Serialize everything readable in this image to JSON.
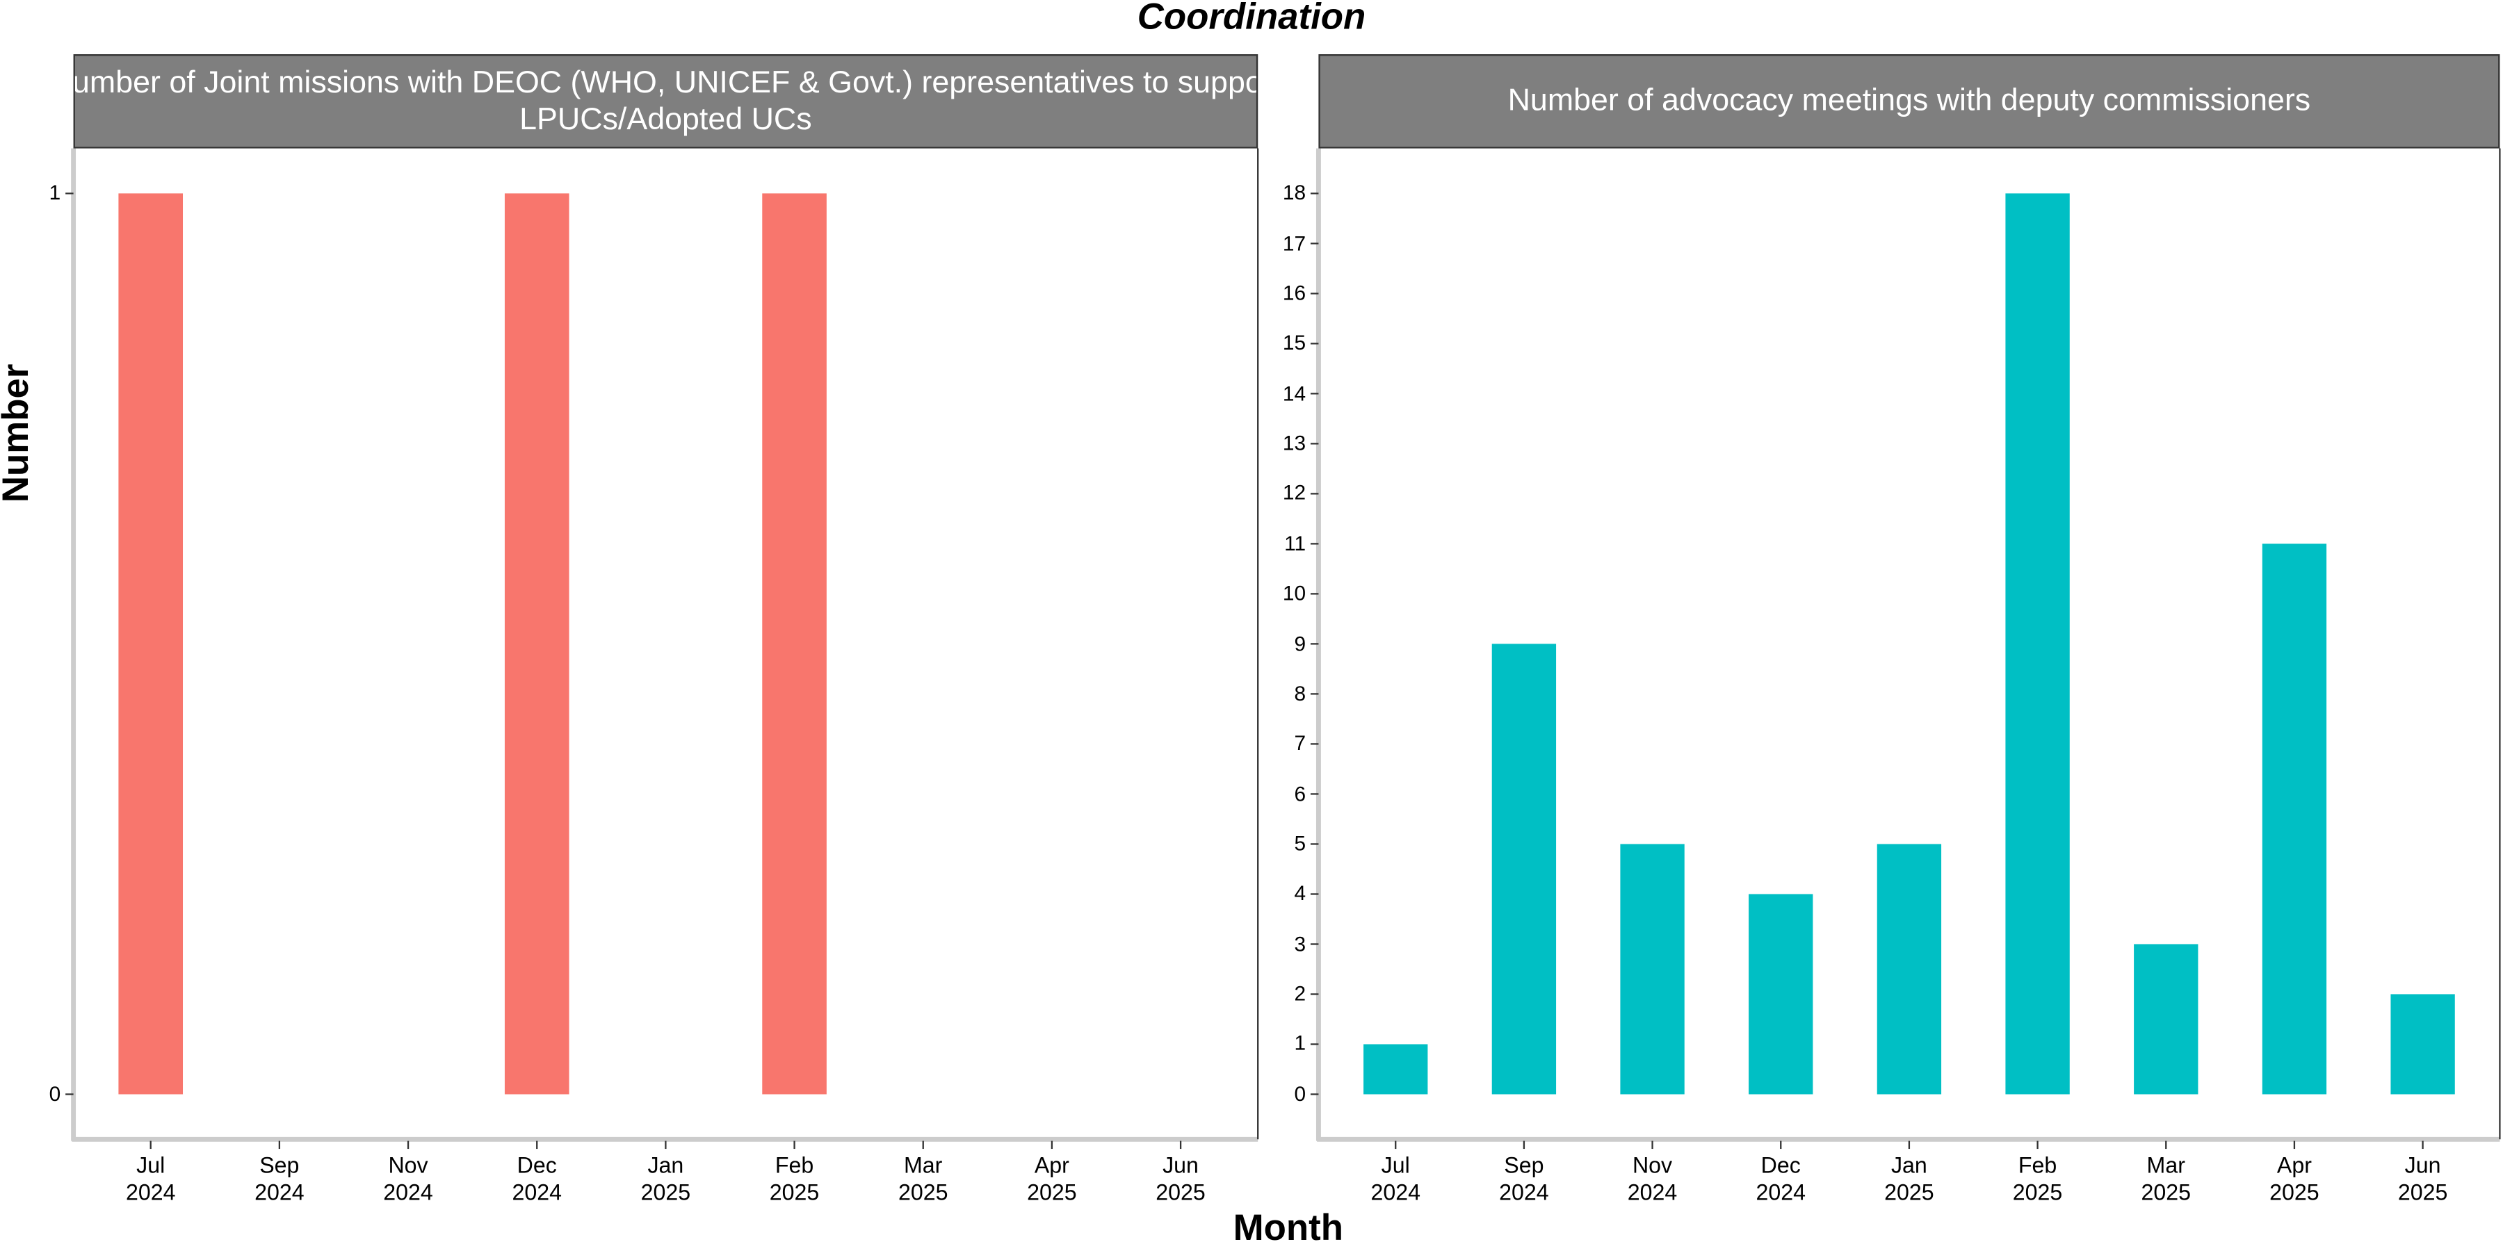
{
  "title": "Coordination",
  "x_label": "Month",
  "y_label": "Number",
  "chart_data": [
    {
      "type": "bar",
      "title": "Number of Joint missions with DEOC (WHO, UNICEF & Govt.) representatives to support LPUCs/Adopted UCs",
      "categories": [
        "Jul 2024",
        "Sep 2024",
        "Nov 2024",
        "Dec 2024",
        "Jan 2025",
        "Feb 2025",
        "Mar 2025",
        "Apr 2025",
        "Jun 2025"
      ],
      "values": [
        1,
        null,
        null,
        1,
        null,
        1,
        null,
        null,
        null
      ],
      "color": "#f8766d",
      "ylim": [
        -0.05,
        1.05
      ],
      "yticks": [
        0,
        1
      ]
    },
    {
      "type": "bar",
      "title": "Number of advocacy meetings with deputy commissioners",
      "categories": [
        "Jul 2024",
        "Sep 2024",
        "Nov 2024",
        "Dec 2024",
        "Jan 2025",
        "Feb 2025",
        "Mar 2025",
        "Apr 2025",
        "Jun 2025"
      ],
      "values": [
        1,
        9,
        5,
        4,
        5,
        18,
        3,
        11,
        2
      ],
      "color": "#00bfc4",
      "ylim": [
        -0.9,
        18.9
      ],
      "yticks": [
        0,
        1,
        2,
        3,
        4,
        5,
        6,
        7,
        8,
        9,
        10,
        11,
        12,
        13,
        14,
        15,
        16,
        17,
        18
      ]
    }
  ]
}
